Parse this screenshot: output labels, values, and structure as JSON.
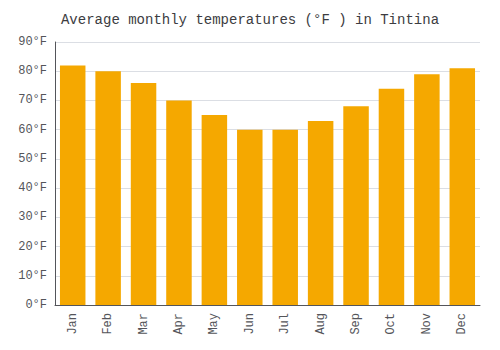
{
  "chart_data": {
    "type": "bar",
    "title": "Average monthly temperatures (°F ) in Tintina",
    "categories": [
      "Jan",
      "Feb",
      "Mar",
      "Apr",
      "May",
      "Jun",
      "Jul",
      "Aug",
      "Sep",
      "Oct",
      "Nov",
      "Dec"
    ],
    "values": [
      82,
      80,
      76,
      70,
      65,
      60,
      60,
      63,
      68,
      74,
      79,
      81
    ],
    "color": "#F5A800",
    "ylim": [
      0,
      90
    ],
    "yticks": [
      {
        "value": 0,
        "label": "0°F"
      },
      {
        "value": 10,
        "label": "10°F"
      },
      {
        "value": 20,
        "label": "20°F"
      },
      {
        "value": 30,
        "label": "30°F"
      },
      {
        "value": 40,
        "label": "40°F"
      },
      {
        "value": 50,
        "label": "50°F"
      },
      {
        "value": 60,
        "label": "60°F"
      },
      {
        "value": 70,
        "label": "70°F"
      },
      {
        "value": 80,
        "label": "80°F"
      },
      {
        "value": 90,
        "label": "90°F"
      }
    ],
    "grid": true
  }
}
